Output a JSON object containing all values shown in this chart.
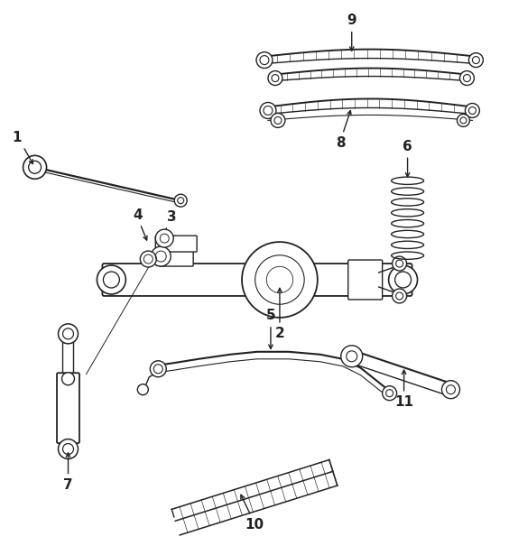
{
  "bg_color": "#ffffff",
  "lc": "#222222",
  "lw": 1.0,
  "figsize": [
    5.64,
    6.15
  ],
  "dpi": 100,
  "label_fontsize": 11
}
